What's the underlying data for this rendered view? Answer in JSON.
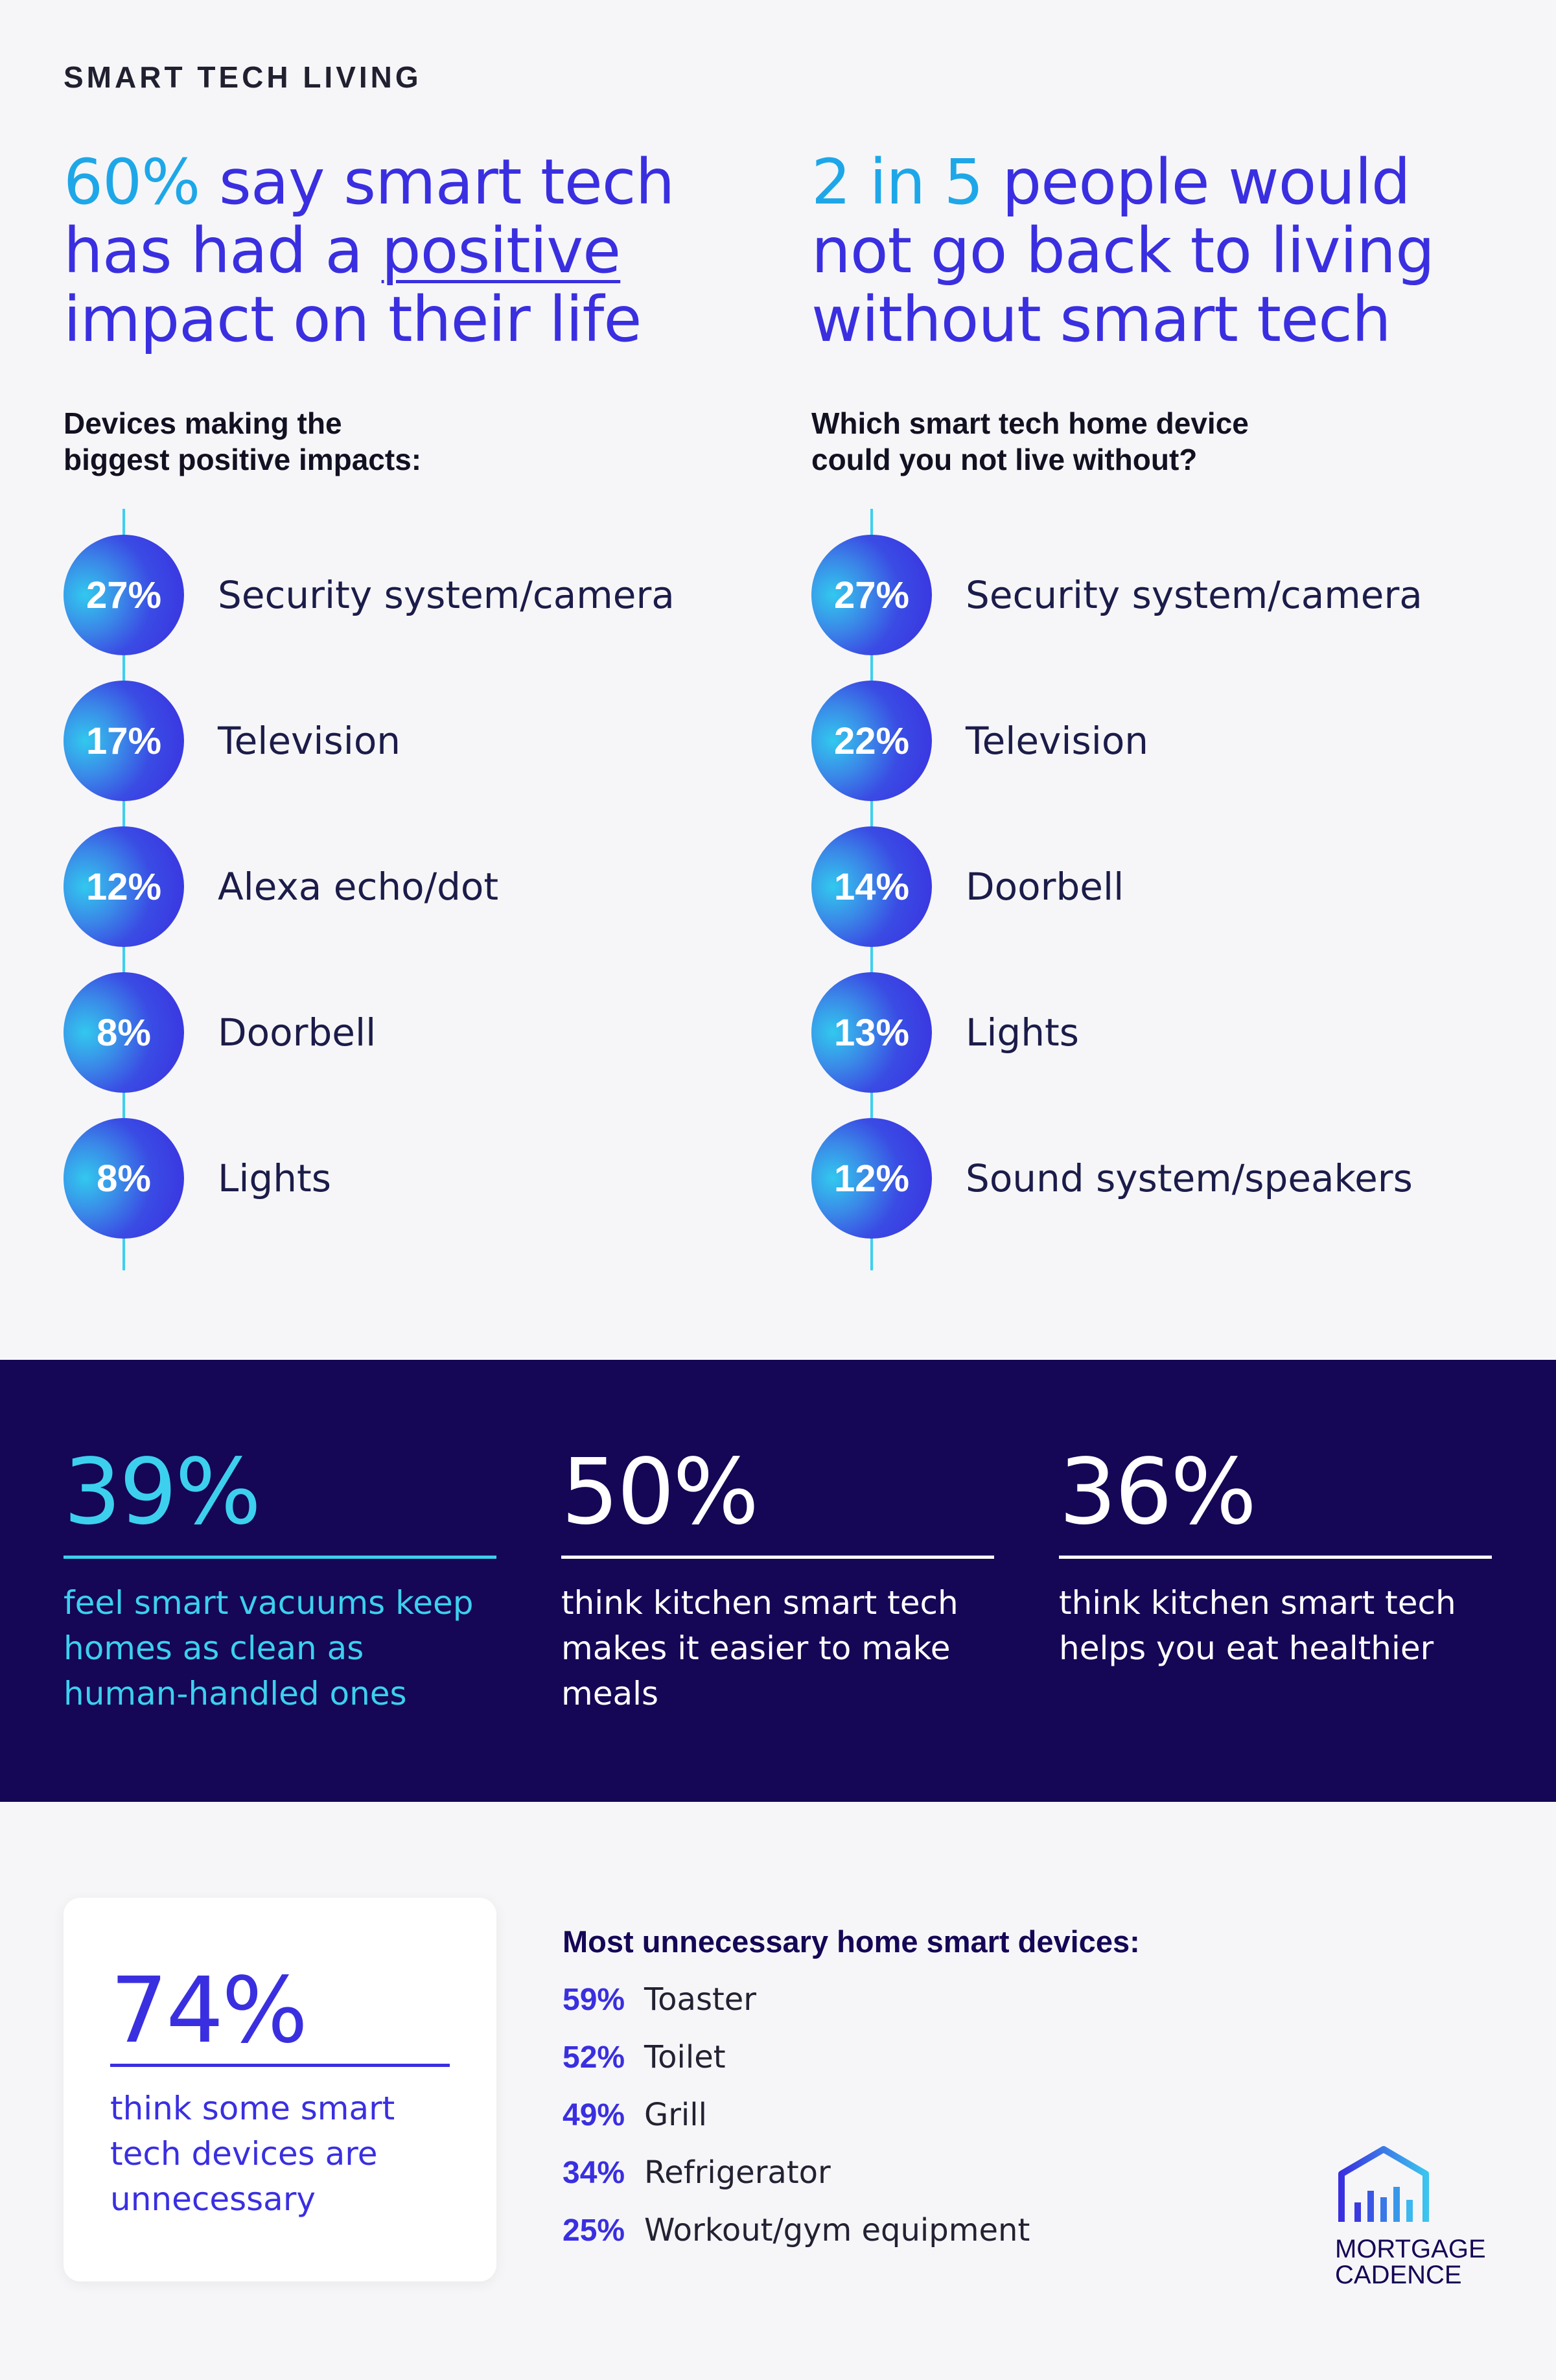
{
  "section_label": "SMART TECH LIVING",
  "left": {
    "headline": {
      "accent": "60%",
      "part1": " say smart tech has had a ",
      "underlined": "positive",
      "part2": " impact on their life"
    },
    "subhead_line1": "Devices making the",
    "subhead_line2": "biggest positive impacts:",
    "items": [
      {
        "pct": "27%",
        "label": "Security system/camera"
      },
      {
        "pct": "17%",
        "label": "Television"
      },
      {
        "pct": "12%",
        "label": "Alexa echo/dot"
      },
      {
        "pct": "8%",
        "label": "Doorbell"
      },
      {
        "pct": "8%",
        "label": "Lights"
      }
    ]
  },
  "right": {
    "headline": {
      "accent": "2 in 5",
      "rest": " people would not go back to living without smart tech"
    },
    "subhead_line1": "Which smart tech home device",
    "subhead_line2": "could you not live without?",
    "items": [
      {
        "pct": "27%",
        "label": "Security system/camera"
      },
      {
        "pct": "22%",
        "label": "Television"
      },
      {
        "pct": "14%",
        "label": "Doorbell"
      },
      {
        "pct": "13%",
        "label": "Lights"
      },
      {
        "pct": "12%",
        "label": "Sound system/speakers"
      }
    ]
  },
  "stats": [
    {
      "value": "39%",
      "text": "feel smart vacuums keep homes as clean as human-handled ones"
    },
    {
      "value": "50%",
      "text": "think kitchen smart tech makes it easier to make meals"
    },
    {
      "value": "36%",
      "text": "think kitchen smart tech helps you eat healthier"
    }
  ],
  "card": {
    "value": "74%",
    "text": "think some smart tech devices are unnecessary"
  },
  "unnecessary": {
    "title": "Most unnecessary home smart devices:",
    "items": [
      {
        "pct": "59%",
        "label": "Toaster"
      },
      {
        "pct": "52%",
        "label": "Toilet"
      },
      {
        "pct": "49%",
        "label": "Grill"
      },
      {
        "pct": "34%",
        "label": "Refrigerator"
      },
      {
        "pct": "25%",
        "label": "Workout/gym equipment"
      }
    ]
  },
  "logo": {
    "line1": "MORTGAGE",
    "line2": "CADENCE",
    "icon": "house-bars-icon"
  },
  "colors": {
    "background": "#f6f6f8",
    "primary_blue": "#3a2fe0",
    "accent_cyan": "#3cd0ee",
    "headline_accent": "#1ea7e8",
    "dark_band": "#150656"
  }
}
